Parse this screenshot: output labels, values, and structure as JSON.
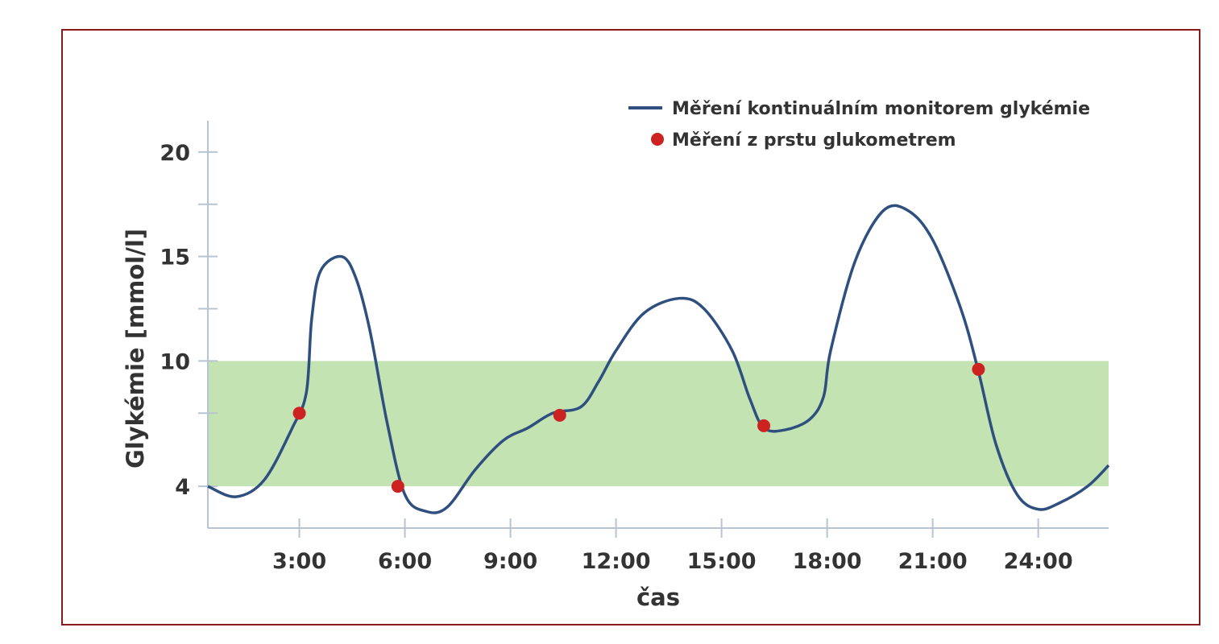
{
  "chart_data": {
    "type": "line",
    "xlabel": "čas",
    "ylabel": "Glykémie [mmol/l]",
    "xlim": [
      0.4,
      26.0
    ],
    "ylim": [
      2.0,
      21.5
    ],
    "x_ticks": [
      {
        "v": 3,
        "label": "3:00"
      },
      {
        "v": 6,
        "label": "6:00"
      },
      {
        "v": 9,
        "label": "9:00"
      },
      {
        "v": 12,
        "label": "12:00"
      },
      {
        "v": 15,
        "label": "15:00"
      },
      {
        "v": 18,
        "label": "18:00"
      },
      {
        "v": 21,
        "label": "21:00"
      },
      {
        "v": 24,
        "label": "24:00"
      }
    ],
    "y_ticks": [
      {
        "v": 4,
        "label": "4"
      },
      {
        "v": 10,
        "label": "10"
      },
      {
        "v": 15,
        "label": "15"
      },
      {
        "v": 20,
        "label": "20"
      }
    ],
    "y_minor_ticks": [
      7.5,
      12.5,
      17.5
    ],
    "target_range": {
      "min": 4,
      "max": 10,
      "color": "#c4e3b3"
    },
    "series": [
      {
        "name": "Měření kontinuálním monitorem glykémie",
        "type": "line",
        "color": "#2f4f7f",
        "x": [
          0.4,
          1.2,
          2.0,
          2.8,
          3.2,
          3.35,
          3.6,
          4.2,
          4.6,
          5.0,
          5.5,
          6.0,
          6.6,
          7.2,
          8.0,
          8.8,
          9.5,
          10.2,
          11.0,
          11.5,
          12.0,
          12.8,
          13.8,
          14.5,
          15.3,
          15.8,
          16.2,
          16.8,
          17.5,
          17.9,
          18.1,
          18.8,
          19.6,
          20.3,
          21.0,
          21.8,
          22.3,
          22.8,
          23.4,
          24.0,
          24.6,
          25.4,
          26.0
        ],
        "y": [
          4.0,
          3.5,
          4.3,
          6.8,
          8.5,
          12.0,
          14.3,
          15.0,
          14.0,
          11.5,
          7.0,
          3.6,
          2.8,
          3.0,
          4.8,
          6.2,
          6.8,
          7.5,
          7.8,
          9.0,
          10.5,
          12.3,
          13.0,
          12.5,
          10.5,
          8.2,
          6.8,
          6.7,
          7.2,
          8.3,
          10.5,
          14.8,
          17.2,
          17.2,
          15.8,
          12.5,
          9.5,
          6.0,
          3.6,
          2.9,
          3.2,
          4.0,
          5.0
        ]
      },
      {
        "name": "Měření z prstu glukometrem",
        "type": "scatter",
        "color": "#cc2222",
        "x": [
          3.0,
          5.8,
          10.4,
          16.2,
          22.3
        ],
        "y": [
          7.5,
          4.0,
          7.4,
          6.9,
          9.6
        ]
      }
    ],
    "legend_position": "top-right",
    "grid": false
  }
}
